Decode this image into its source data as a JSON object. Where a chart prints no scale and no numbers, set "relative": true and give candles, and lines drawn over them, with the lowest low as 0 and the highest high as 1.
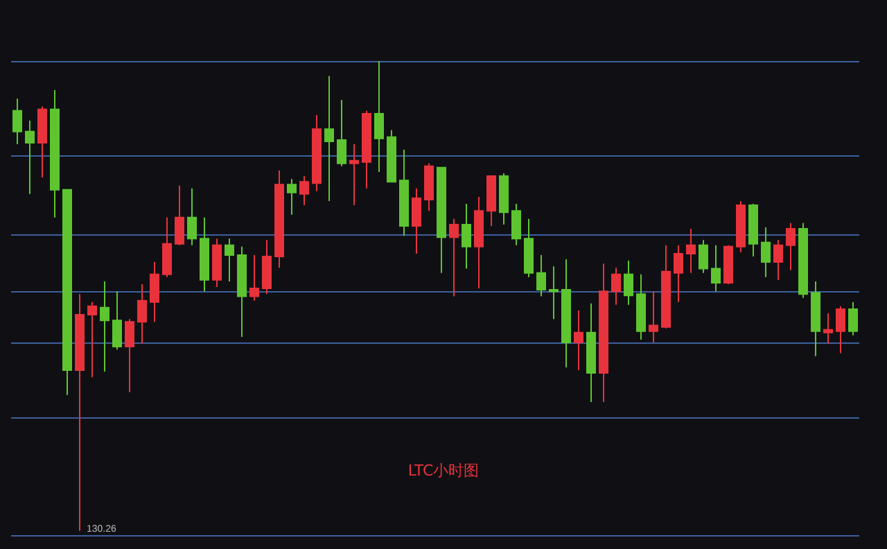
{
  "chart_data": {
    "type": "candlestick",
    "relative": true,
    "categories": [
      null,
      null,
      null,
      null,
      null,
      null,
      null,
      null,
      null,
      null,
      null,
      null,
      null,
      null,
      null,
      null,
      null,
      null,
      null,
      null,
      null,
      null,
      null,
      null,
      null,
      null,
      null,
      null,
      null,
      null,
      null,
      null,
      null,
      null,
      null,
      null,
      null,
      null,
      null,
      null,
      null,
      null,
      null,
      null,
      null,
      null,
      null,
      null,
      null,
      null,
      null,
      null,
      null,
      null,
      null,
      null,
      null,
      null,
      null,
      null,
      null,
      null,
      null,
      null,
      null,
      null,
      null,
      null
    ],
    "ohlc": [
      [
        0.894,
        0.92,
        0.823,
        0.85
      ],
      [
        0.85,
        0.873,
        0.717,
        0.826
      ],
      [
        0.826,
        0.903,
        0.752,
        0.897
      ],
      [
        0.897,
        0.938,
        0.667,
        0.726
      ],
      [
        0.726,
        0.726,
        0.289,
        0.342
      ],
      [
        0.342,
        0.504,
        0,
        0.46
      ],
      [
        0.46,
        0.487,
        0.327,
        0.478
      ],
      [
        0.475,
        0.531,
        0.339,
        0.448
      ],
      [
        0.448,
        0.51,
        0.386,
        0.392
      ],
      [
        0.392,
        0.451,
        0.295,
        0.445
      ],
      [
        0.445,
        0.525,
        0.398,
        0.49
      ],
      [
        0.487,
        0.572,
        0.445,
        0.546
      ],
      [
        0.546,
        0.667,
        0.54,
        0.611
      ],
      [
        0.611,
        0.735,
        0.608,
        0.667
      ],
      [
        0.667,
        0.729,
        0.608,
        0.622
      ],
      [
        0.622,
        0.667,
        0.51,
        0.534
      ],
      [
        0.534,
        0.622,
        0.519,
        0.608
      ],
      [
        0.608,
        0.622,
        0.531,
        0.587
      ],
      [
        0.587,
        0.605,
        0.413,
        0.499
      ],
      [
        0.499,
        0.587,
        0.49,
        0.516
      ],
      [
        0.516,
        0.619,
        0.504,
        0.584
      ],
      [
        0.584,
        0.767,
        0.56,
        0.737
      ],
      [
        0.737,
        0.749,
        0.673,
        0.72
      ],
      [
        0.717,
        0.755,
        0.693,
        0.743
      ],
      [
        0.74,
        0.885,
        0.723,
        0.855
      ],
      [
        0.855,
        0.968,
        0.702,
        0.829
      ],
      [
        0.832,
        0.917,
        0.776,
        0.782
      ],
      [
        0.782,
        0.823,
        0.693,
        0.788
      ],
      [
        0.785,
        0.894,
        0.729,
        0.888
      ],
      [
        0.888,
        1,
        0.764,
        0.835
      ],
      [
        0.838,
        0.853,
        0.743,
        0.743
      ],
      [
        0.746,
        0.811,
        0.628,
        0.649
      ],
      [
        0.649,
        0.729,
        0.59,
        0.708
      ],
      [
        0.705,
        0.782,
        0.681,
        0.776
      ],
      [
        0.773,
        0.773,
        0.549,
        0.625
      ],
      [
        0.625,
        0.664,
        0.499,
        0.652
      ],
      [
        0.652,
        0.696,
        0.558,
        0.605
      ],
      [
        0.605,
        0.711,
        0.516,
        0.681
      ],
      [
        0.681,
        0.755,
        0.649,
        0.755
      ],
      [
        0.755,
        0.761,
        0.652,
        0.678
      ],
      [
        0.681,
        0.696,
        0.608,
        0.622
      ],
      [
        0.622,
        0.664,
        0.54,
        0.549
      ],
      [
        0.549,
        0.587,
        0.499,
        0.513
      ],
      [
        0.513,
        0.563,
        0.451,
        0.51
      ],
      [
        0.513,
        0.578,
        0.348,
        0.401
      ],
      [
        0.401,
        0.469,
        0.342,
        0.422
      ],
      [
        0.422,
        0.484,
        0.274,
        0.336
      ],
      [
        0.336,
        0.569,
        0.274,
        0.51
      ],
      [
        0.51,
        0.56,
        0.481,
        0.546
      ],
      [
        0.546,
        0.575,
        0.481,
        0.501
      ],
      [
        0.504,
        0.546,
        0.407,
        0.425
      ],
      [
        0.425,
        0.51,
        0.401,
        0.437
      ],
      [
        0.434,
        0.608,
        0.431,
        0.552
      ],
      [
        0.549,
        0.608,
        0.487,
        0.59
      ],
      [
        0.59,
        0.643,
        0.549,
        0.608
      ],
      [
        0.608,
        0.619,
        0.549,
        0.558
      ],
      [
        0.558,
        0.608,
        0.51,
        0.528
      ],
      [
        0.528,
        0.608,
        0.525,
        0.605
      ],
      [
        0.605,
        0.702,
        0.593,
        0.693
      ],
      [
        0.693,
        0.696,
        0.584,
        0.611
      ],
      [
        0.614,
        0.646,
        0.54,
        0.572
      ],
      [
        0.572,
        0.619,
        0.534,
        0.608
      ],
      [
        0.608,
        0.655,
        0.555,
        0.643
      ],
      [
        0.643,
        0.655,
        0.496,
        0.504
      ],
      [
        0.507,
        0.531,
        0.372,
        0.425
      ],
      [
        0.422,
        0.463,
        0.398,
        0.428
      ],
      [
        0.425,
        0.478,
        0.378,
        0.472
      ],
      [
        0.472,
        0.487,
        0.416,
        0.425
      ]
    ],
    "colors": [
      "#5ec530",
      "#5ec530",
      "#e8333c",
      "#5ec530",
      "#5ec530",
      "#e8333c",
      "#e8333c",
      "#5ec530",
      "#5ec530",
      "#e8333c",
      "#e8333c",
      "#e8333c",
      "#e8333c",
      "#e8333c",
      "#5ec530",
      "#5ec530",
      "#e8333c",
      "#5ec530",
      "#5ec530",
      "#e8333c",
      "#e8333c",
      "#e8333c",
      "#5ec530",
      "#e8333c",
      "#e8333c",
      "#5ec530",
      "#5ec530",
      "#e8333c",
      "#e8333c",
      "#5ec530",
      "#5ec530",
      "#5ec530",
      "#e8333c",
      "#e8333c",
      "#5ec530",
      "#e8333c",
      "#5ec530",
      "#e8333c",
      "#e8333c",
      "#5ec530",
      "#5ec530",
      "#5ec530",
      "#5ec530",
      "#5ec530",
      "#5ec530",
      "#e8333c",
      "#5ec530",
      "#e8333c",
      "#e8333c",
      "#5ec530",
      "#5ec530",
      "#e8333c",
      "#e8333c",
      "#e8333c",
      "#e8333c",
      "#5ec530",
      "#5ec530",
      "#e8333c",
      "#e8333c",
      "#5ec530",
      "#5ec530",
      "#e8333c",
      "#e8333c",
      "#5ec530",
      "#5ec530",
      "#e8333c",
      "#e8333c",
      "#5ec530"
    ],
    "ref_lines": [
      {
        "axis": "y",
        "value": 1.0,
        "color": "#3d5f9e"
      },
      {
        "axis": "y",
        "value": 0.796,
        "color": "#3d5f9e"
      },
      {
        "axis": "y",
        "value": 0.628,
        "color": "#3d5f9e"
      },
      {
        "axis": "y",
        "value": 0.513,
        "color": "#3d5f9e"
      },
      {
        "axis": "y",
        "value": 0.398,
        "color": "#3d5f9e"
      },
      {
        "axis": "y",
        "value": 0.242,
        "color": "#3d5f9e"
      },
      {
        "axis": "y",
        "value": -0.015,
        "color": "#3d5f9e"
      }
    ],
    "annotations": [
      "LTC小时图",
      {
        "text": "130.26",
        "y": 0
      }
    ]
  }
}
